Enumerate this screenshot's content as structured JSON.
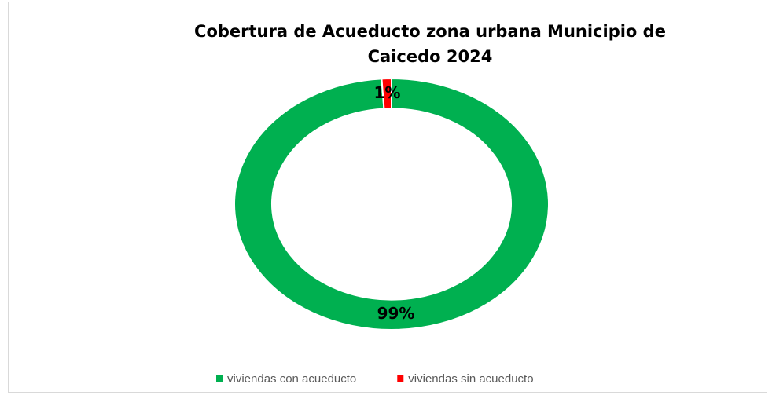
{
  "chart_data": {
    "type": "pie",
    "title": "Cobertura de Acueducto zona urbana Municipio de Caicedo 2024",
    "categories": [
      "viviendas con acueducto",
      "viviendas sin acueducto"
    ],
    "values": [
      99,
      1
    ],
    "value_labels": [
      "99%",
      "1%"
    ],
    "colors": [
      "#00b050",
      "#ff0000"
    ],
    "donut": true,
    "legend": "bottom"
  }
}
